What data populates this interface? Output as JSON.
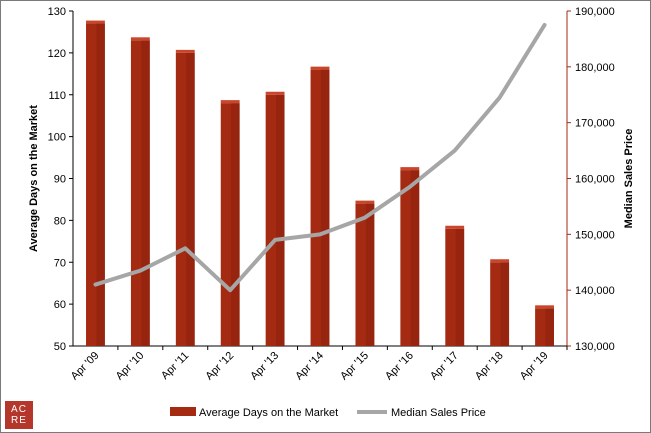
{
  "logo": {
    "line1": "AC",
    "line2": "RE"
  },
  "chart_data": {
    "type": "bar",
    "categories": [
      "Apr '09",
      "Apr '10",
      "Apr '11",
      "Apr '12",
      "Apr '13",
      "Apr '14",
      "Apr '15",
      "Apr '16",
      "Apr '17",
      "Apr '18",
      "Apr '19"
    ],
    "series": [
      {
        "name": "Average Days on the Market",
        "type": "bar",
        "axis": "left",
        "color": "#a52a12",
        "values": [
          127,
          123,
          120,
          108,
          110,
          116,
          84,
          92,
          78,
          70,
          59
        ]
      },
      {
        "name": "Median Sales Price",
        "type": "line",
        "axis": "right",
        "color": "#a6a6a6",
        "values": [
          141000,
          143500,
          147500,
          140000,
          149000,
          150000,
          153000,
          158500,
          165000,
          174500,
          187500
        ]
      }
    ],
    "ylabel": "Average Days on the Market",
    "ylim": [
      50,
      130
    ],
    "yticks": [
      50,
      60,
      70,
      80,
      90,
      100,
      110,
      120,
      130
    ],
    "y2label": "Median Sales Price",
    "y2lim": [
      130000,
      190000
    ],
    "y2ticks": [
      "130,000",
      "140,000",
      "150,000",
      "160,000",
      "170,000",
      "180,000",
      "190,000"
    ],
    "legend": "bottom",
    "grid": false
  }
}
